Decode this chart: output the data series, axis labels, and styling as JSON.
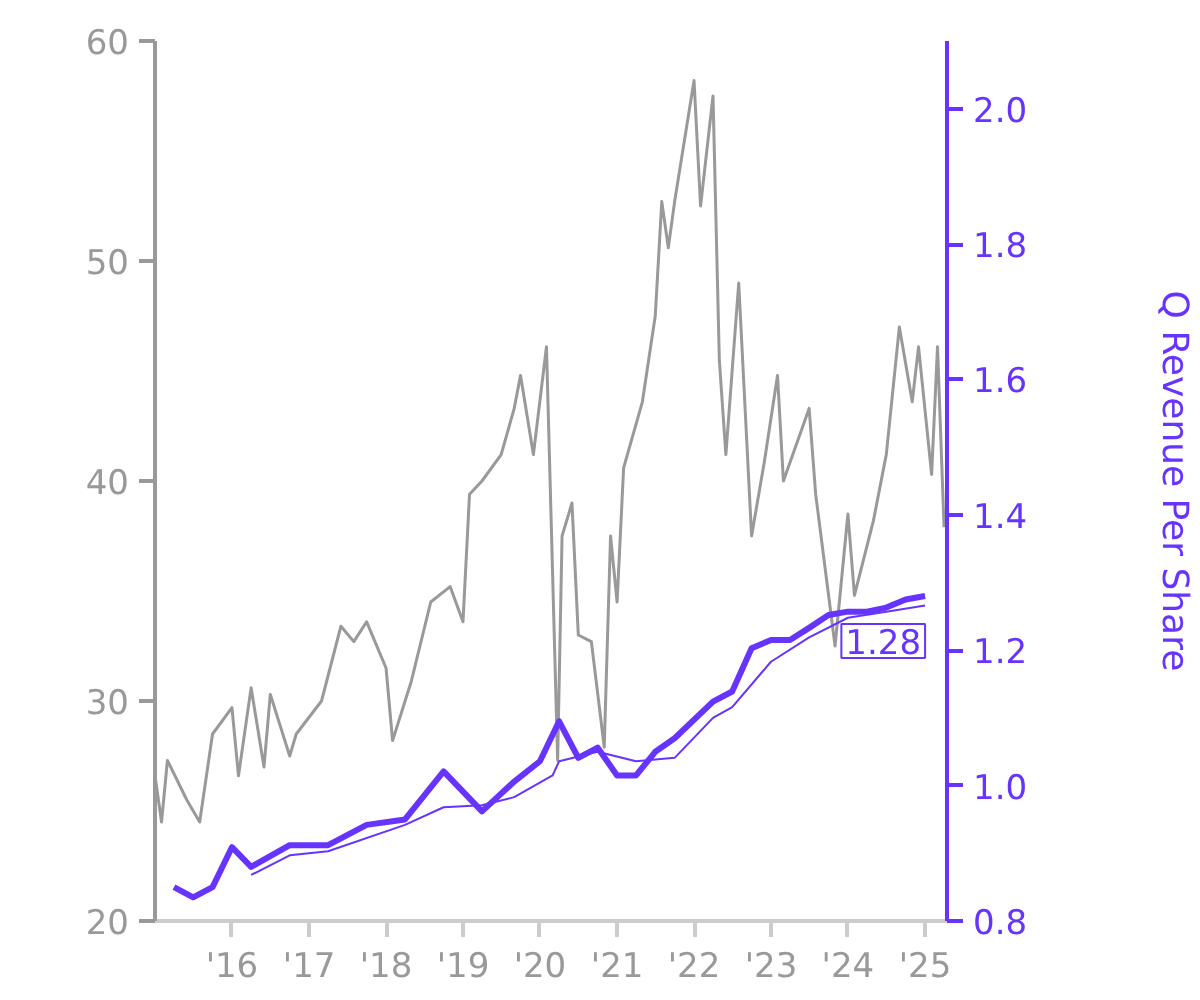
{
  "chart_data": {
    "type": "line",
    "y2label": "Q Revenue Per Share",
    "xlim": [
      "2015-01-01",
      "2025-04-15"
    ],
    "xticks": [
      {
        "value": "2016-01-01",
        "label": "'16"
      },
      {
        "value": "2017-01-01",
        "label": "'17"
      },
      {
        "value": "2018-01-01",
        "label": "'18"
      },
      {
        "value": "2019-01-01",
        "label": "'19"
      },
      {
        "value": "2020-01-01",
        "label": "'20"
      },
      {
        "value": "2021-01-01",
        "label": "'21"
      },
      {
        "value": "2022-01-01",
        "label": "'22"
      },
      {
        "value": "2023-01-01",
        "label": "'23"
      },
      {
        "value": "2024-01-01",
        "label": "'24"
      },
      {
        "value": "2025-01-01",
        "label": "'25"
      }
    ],
    "ylim": [
      20,
      60
    ],
    "yticks": [
      20,
      30,
      40,
      50,
      60
    ],
    "y2lim": [
      0.8,
      2.1
    ],
    "y2ticks": [
      0.8,
      {
        "value": 1,
        "label": "1.0"
      },
      1.2,
      1.4,
      1.6,
      1.8,
      {
        "value": 2,
        "label": "2.0"
      }
    ],
    "grid": false,
    "marker": "none",
    "line_style": "solid",
    "series": [
      {
        "color": "#999999",
        "x": [
          "2015-01",
          "2015-02",
          "2015-03",
          "2015-06",
          "2015-08",
          "2015-10",
          "2016-01",
          "2016-02",
          "2016-04",
          "2016-06",
          "2016-07",
          "2016-10",
          "2016-11",
          "2017-03",
          "2017-06",
          "2017-08",
          "2017-10",
          "2018-01",
          "2018-02",
          "2018-05",
          "2018-08",
          "2018-11",
          "2019-01",
          "2019-02",
          "2019-04",
          "2019-07",
          "2019-09",
          "2019-10",
          "2019-12",
          "2020-02",
          "2020-03-25",
          "2020-04-15",
          "2020-06",
          "2020-07",
          "2020-09",
          "2020-11",
          "2020-12",
          "2021-01",
          "2021-02",
          "2021-05",
          "2021-07",
          "2021-08",
          "2021-09",
          "2021-10",
          "2022-01",
          "2022-02",
          "2022-04",
          "2022-05",
          "2022-06",
          "2022-08",
          "2022-10",
          "2022-12",
          "2023-02",
          "2023-03",
          "2023-07",
          "2023-08",
          "2023-11",
          "2024-01",
          "2024-02",
          "2024-05",
          "2024-07",
          "2024-09",
          "2024-11",
          "2024-12",
          "2025-02",
          "2025-03",
          "2025-04"
        ],
        "values": [
          26.6,
          24.5,
          27.3,
          25.5,
          24.5,
          28.5,
          29.7,
          26.6,
          30.6,
          27.0,
          30.3,
          27.5,
          28.5,
          30.0,
          33.4,
          32.7,
          33.6,
          31.5,
          28.2,
          30.9,
          34.5,
          35.2,
          33.6,
          39.4,
          40.0,
          41.2,
          43.3,
          44.8,
          41.2,
          46.1,
          27.3,
          37.5,
          39.0,
          33.0,
          32.7,
          27.9,
          37.5,
          34.5,
          40.6,
          43.6,
          47.5,
          52.7,
          50.6,
          52.7,
          58.2,
          52.5,
          57.5,
          45.5,
          41.2,
          49.0,
          37.5,
          40.9,
          44.8,
          40.0,
          43.3,
          39.4,
          32.5,
          38.5,
          34.8,
          38.2,
          41.2,
          47.0,
          43.6,
          46.1,
          40.3,
          46.1,
          37.9
        ]
      },
      {
        "color": "#6633ff",
        "axis": "y2",
        "x": [
          "2015-04",
          "2015-07",
          "2015-10",
          "2016-01",
          "2016-04",
          "2016-10",
          "2017-04",
          "2017-10",
          "2018-04",
          "2018-10",
          "2019-04",
          "2019-09",
          "2020-01",
          "2020-04",
          "2020-07",
          "2020-10",
          "2021-01",
          "2021-04",
          "2021-07",
          "2021-10",
          "2022-04",
          "2022-07",
          "2022-10",
          "2023-01",
          "2023-04",
          "2023-07",
          "2023-10",
          "2024-01",
          "2024-04",
          "2024-07",
          "2024-10",
          "2025-01"
        ],
        "values": [
          0.85,
          0.835,
          0.85,
          0.909,
          0.88,
          0.912,
          0.912,
          0.942,
          0.95,
          1.021,
          0.962,
          1.006,
          1.036,
          1.095,
          1.041,
          1.056,
          1.015,
          1.015,
          1.05,
          1.07,
          1.124,
          1.139,
          1.203,
          1.215,
          1.215,
          1.233,
          1.252,
          1.257,
          1.257,
          1.263,
          1.275,
          1.28
        ],
        "value_labels": [
          null,
          null,
          null,
          null,
          null,
          null,
          null,
          null,
          null,
          null,
          null,
          null,
          null,
          null,
          null,
          null,
          null,
          null,
          null,
          null,
          null,
          null,
          null,
          null,
          null,
          null,
          null,
          null,
          null,
          null,
          null,
          "1.28"
        ]
      },
      {
        "color": "#6633ff",
        "axis": "y2",
        "x": [
          "2016-04",
          "2016-10",
          "2017-04",
          "2018-04",
          "2018-10",
          "2019-04",
          "2019-09",
          "2020-03",
          "2020-04",
          "2020-10",
          "2021-04",
          "2021-10",
          "2022-04",
          "2022-07",
          "2023-01",
          "2023-07",
          "2024-01",
          "2024-07",
          "2025-01"
        ],
        "values": [
          0.868,
          0.897,
          0.903,
          0.942,
          0.968,
          0.971,
          0.983,
          1.015,
          1.036,
          1.05,
          1.036,
          1.041,
          1.1,
          1.116,
          1.183,
          1.219,
          1.248,
          1.257,
          1.266
        ]
      }
    ]
  }
}
